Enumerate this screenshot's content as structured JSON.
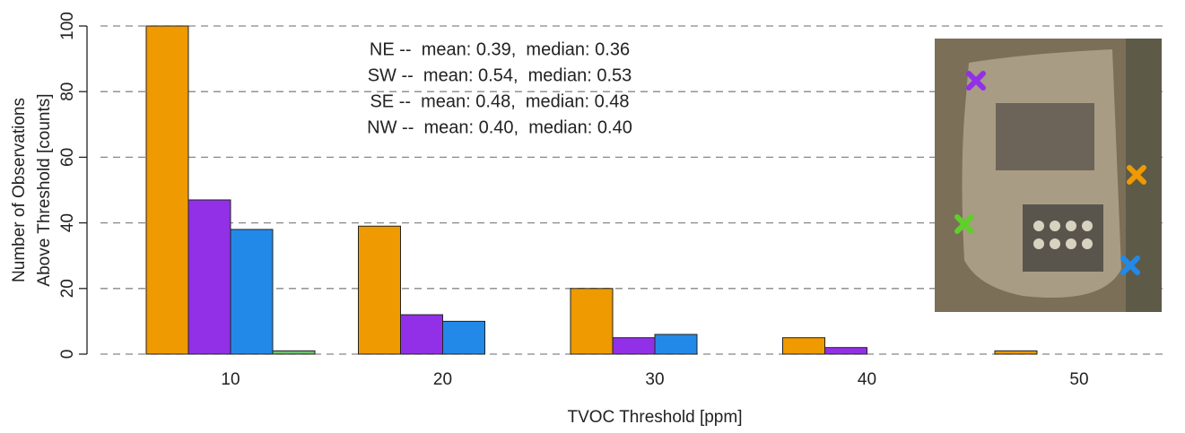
{
  "chart_data": {
    "type": "bar",
    "x_label": "TVOC Threshold [ppm]",
    "y_label": [
      "Number of Observations",
      "Above Threshold [counts]"
    ],
    "categories": [
      "10",
      "20",
      "30",
      "40",
      "50"
    ],
    "series": [
      {
        "color": "#ee9a00",
        "values": [
          100,
          39,
          20,
          5,
          1
        ]
      },
      {
        "color": "#9230e8",
        "values": [
          47,
          12,
          5,
          2,
          0
        ]
      },
      {
        "color": "#2389e8",
        "values": [
          38,
          10,
          6,
          0,
          0
        ]
      },
      {
        "color": "#6fc46f",
        "values": [
          1,
          0,
          0,
          0,
          0
        ]
      }
    ],
    "annotations": [
      {
        "text": "NE --  mean: 0.39,  median: 0.36",
        "color": "#ee9a00"
      },
      {
        "text": "SW --  mean: 0.54,  median: 0.53",
        "color": "#6fc46f"
      },
      {
        "text": "SE --  mean: 0.48,  median: 0.48",
        "color": "#2389e8"
      },
      {
        "text": "NW --  mean: 0.40,  median: 0.40",
        "color": "#9230e8"
      }
    ],
    "ylim": [
      0,
      100
    ],
    "yticks": [
      0,
      20,
      40,
      60,
      80,
      100
    ],
    "grid": true
  }
}
